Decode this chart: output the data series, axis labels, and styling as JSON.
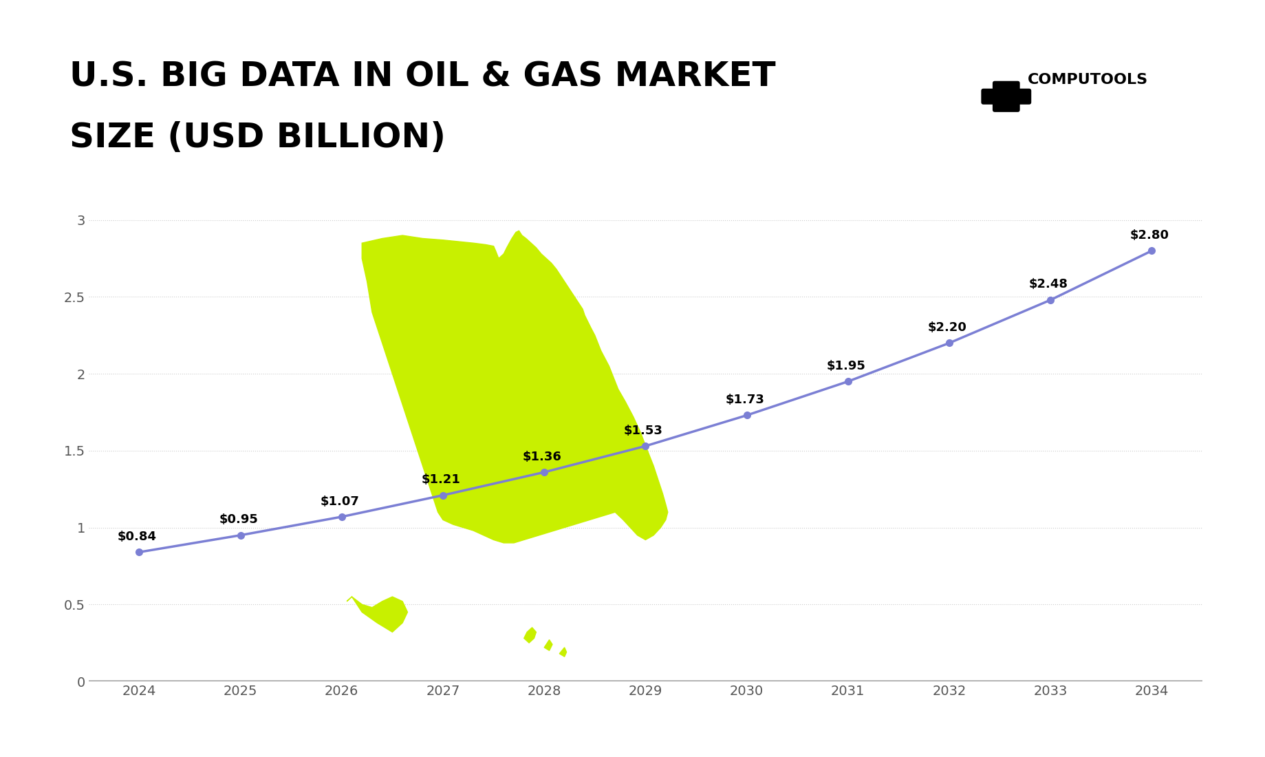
{
  "title_line1": "U.S. BIG DATA IN OIL & GAS MARKET",
  "title_line2": "SIZE (USD BILLION)",
  "years": [
    2024,
    2025,
    2026,
    2027,
    2028,
    2029,
    2030,
    2031,
    2032,
    2033,
    2034
  ],
  "values": [
    0.84,
    0.95,
    1.07,
    1.21,
    1.36,
    1.53,
    1.73,
    1.95,
    2.2,
    2.48,
    2.8
  ],
  "labels": [
    "$0.84",
    "$0.95",
    "$1.07",
    "$1.21",
    "$1.36",
    "$1.53",
    "$1.73",
    "$1.95",
    "$2.20",
    "$2.48",
    "$2.80"
  ],
  "line_color": "#7B7FD4",
  "marker_color": "#7B7FD4",
  "map_color": "#C8F000",
  "background_color": "#FFFFFF",
  "yticks": [
    0,
    0.5,
    1,
    1.5,
    2,
    2.5,
    3
  ],
  "ylim": [
    0,
    3.2
  ],
  "grid_color": "#CCCCCC",
  "axis_color": "#888888",
  "text_color": "#000000",
  "brand_text": "COMPUTOOLS",
  "title_fontsize": 36,
  "label_fontsize": 13,
  "tick_fontsize": 14
}
